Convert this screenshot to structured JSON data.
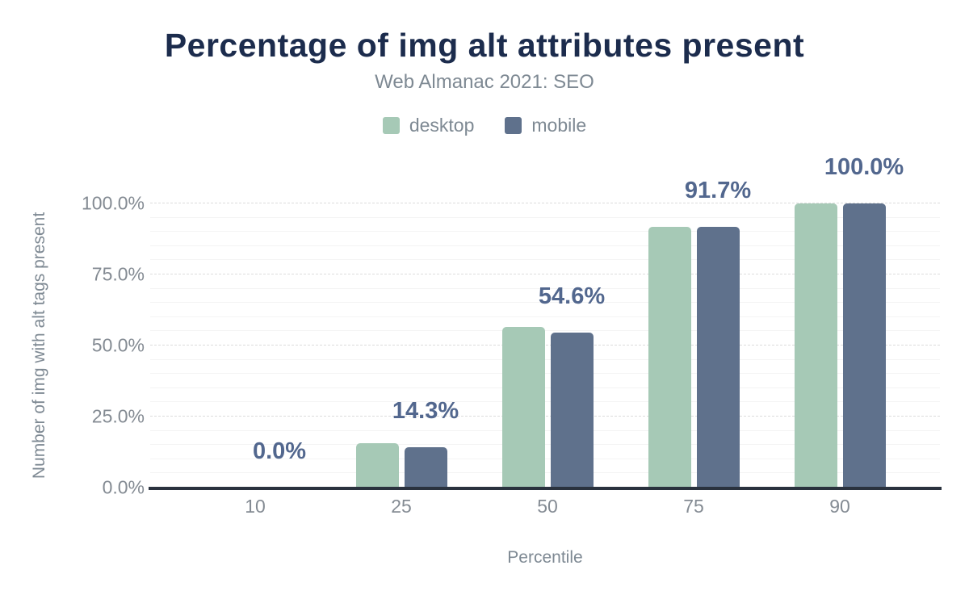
{
  "chart_data": {
    "type": "bar",
    "title": "Percentage of img alt attributes present",
    "subtitle": "Web Almanac 2021: SEO",
    "xlabel": "Percentile",
    "ylabel": "Number of img with alt tags present",
    "categories": [
      "10",
      "25",
      "50",
      "75",
      "90"
    ],
    "series": [
      {
        "name": "desktop",
        "color": "#a6c9b6",
        "values": [
          0.0,
          15.5,
          56.4,
          91.9,
          100.0
        ]
      },
      {
        "name": "mobile",
        "color": "#5f718c",
        "values": [
          0.0,
          14.3,
          54.6,
          91.7,
          100.0
        ]
      }
    ],
    "value_labels": [
      "0.0%",
      "14.3%",
      "54.6%",
      "91.7%",
      "100.0%"
    ],
    "value_label_color": "#52678e",
    "yticks": [
      "0.0%",
      "25.0%",
      "50.0%",
      "75.0%",
      "100.0%"
    ],
    "ylim": [
      0,
      100
    ],
    "grid": {
      "major_every": 25,
      "minor_every": 5,
      "vertical": false
    },
    "legend_position": "top",
    "title_color": "#1c2c4d"
  }
}
